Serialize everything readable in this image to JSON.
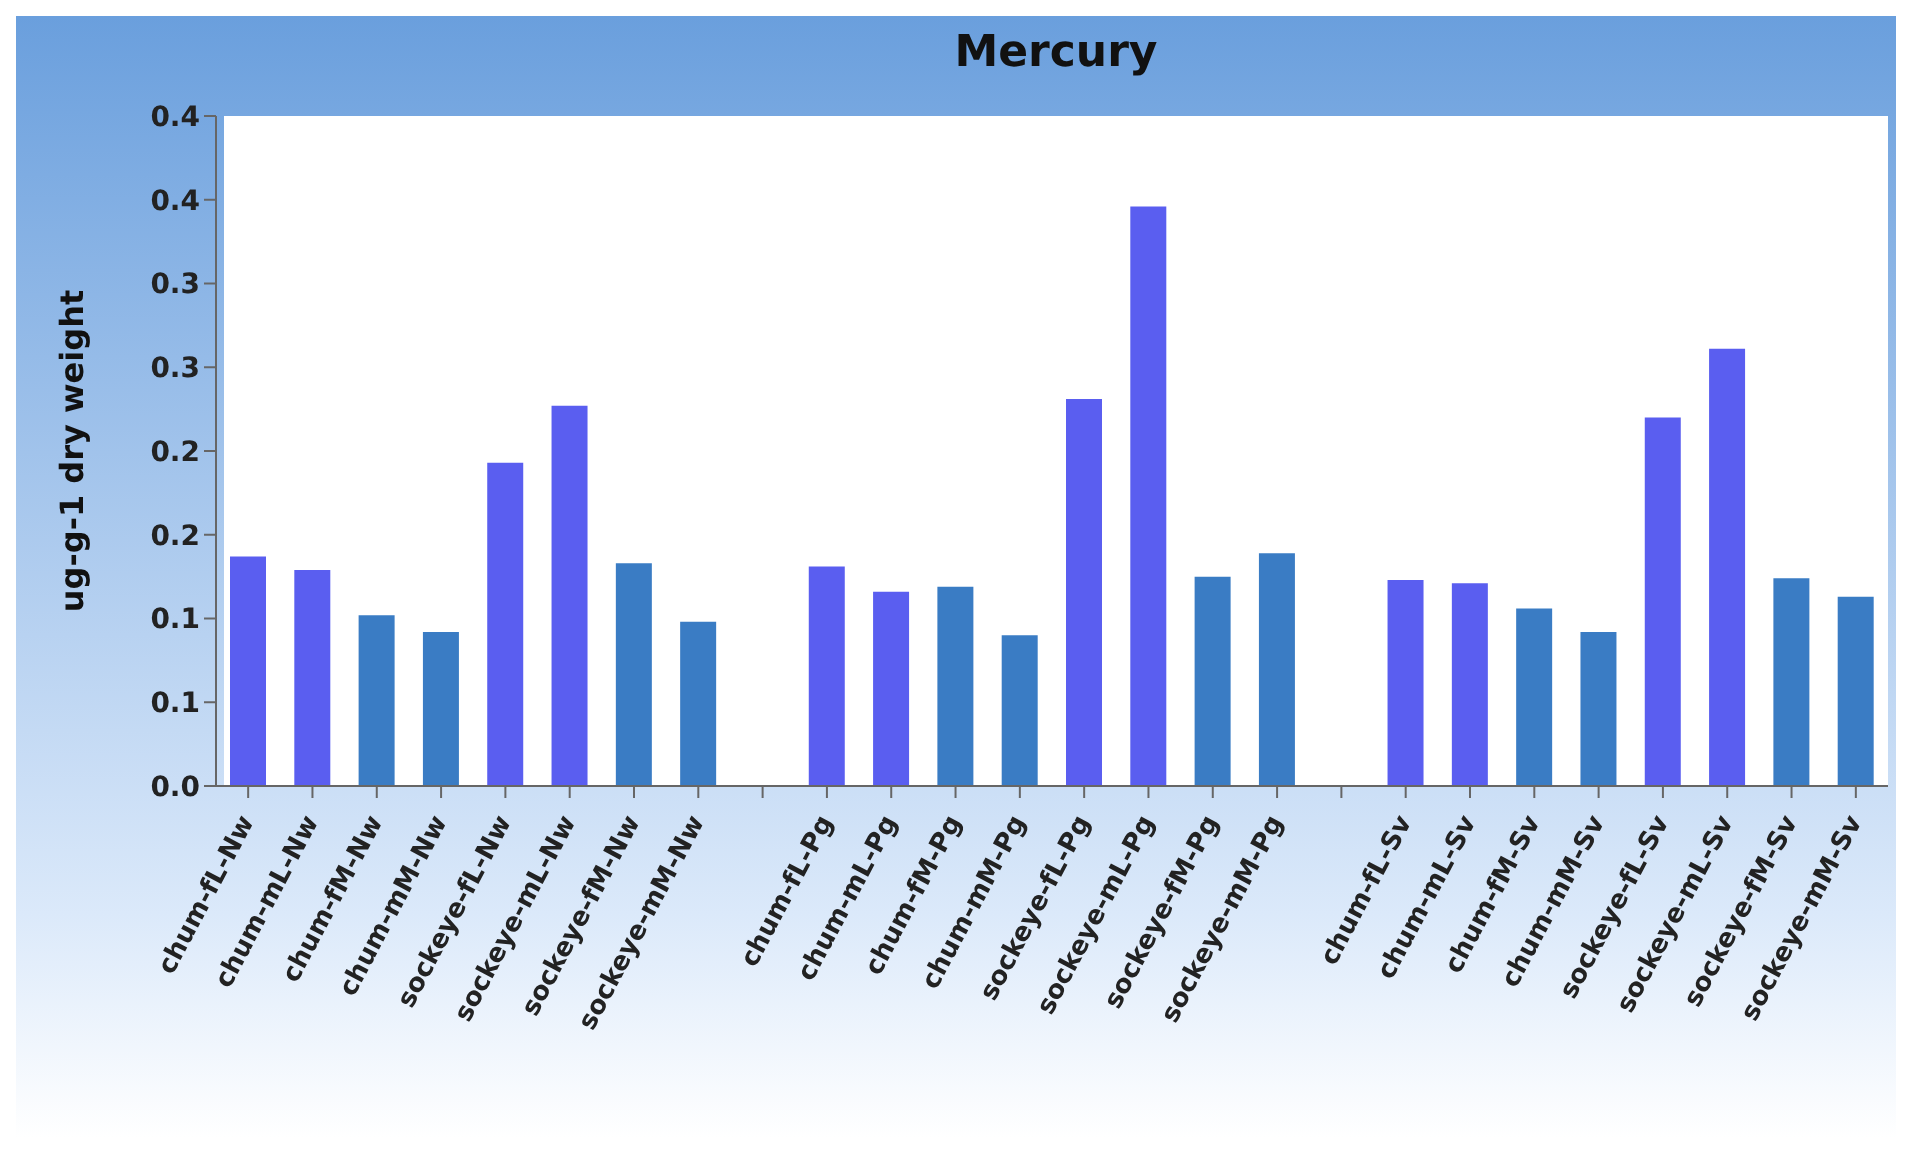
{
  "chart_data": {
    "type": "bar",
    "title": "Mercury",
    "ylabel": "ug-g-1 dry weight",
    "categories": [
      "chum-fL-Nw",
      "chum-mL-Nw",
      "chum-fM-Nw",
      "chum-mM-Nw",
      "sockeye-fL-Nw",
      "sockeye-mL-Nw",
      "sockeye-fM-Nw",
      "sockeye-mM-Nw",
      null,
      "chum-fL-Pg",
      "chum-mL-Pg",
      "chum-fM-Pg",
      "chum-mM-Pg",
      "sockeye-fL-Pg",
      "sockeye-mL-Pg",
      "sockeye-fM-Pg",
      "sockeye-mM-Pg",
      null,
      "chum-fL-Sv",
      "chum-mL-Sv",
      "chum-fM-Sv",
      "chum-mM-Sv",
      "sockeye-fL-Sv",
      "sockeye-mL-Sv",
      "sockeye-fM-Sv",
      "sockeye-mM-Sv"
    ],
    "values": [
      0.137,
      0.129,
      0.102,
      0.092,
      0.193,
      0.227,
      0.133,
      0.098,
      null,
      0.131,
      0.116,
      0.119,
      0.09,
      0.231,
      0.346,
      0.125,
      0.139,
      null,
      0.123,
      0.121,
      0.106,
      0.092,
      0.22,
      0.261,
      0.124,
      0.113
    ],
    "colors": [
      "#5a5ef0",
      "#5a5ef0",
      "#3a7cc4",
      "#3a7cc4",
      "#5a5ef0",
      "#5a5ef0",
      "#3a7cc4",
      "#3a7cc4",
      null,
      "#5a5ef0",
      "#5a5ef0",
      "#3a7cc4",
      "#3a7cc4",
      "#5a5ef0",
      "#5a5ef0",
      "#3a7cc4",
      "#3a7cc4",
      null,
      "#5a5ef0",
      "#5a5ef0",
      "#3a7cc4",
      "#3a7cc4",
      "#5a5ef0",
      "#5a5ef0",
      "#3a7cc4",
      "#3a7cc4"
    ],
    "ylim": [
      0,
      0.4
    ],
    "yticks": [
      {
        "value": 0,
        "label": "0.0"
      },
      {
        "value": 0.05,
        "label": "0.1"
      },
      {
        "value": 0.1,
        "label": "0.1"
      },
      {
        "value": 0.15,
        "label": "0.2"
      },
      {
        "value": 0.2,
        "label": "0.2"
      },
      {
        "value": 0.25,
        "label": "0.3"
      },
      {
        "value": 0.3,
        "label": "0.3"
      },
      {
        "value": 0.35,
        "label": "0.4"
      },
      {
        "value": 0.4,
        "label": "0.4"
      }
    ]
  }
}
